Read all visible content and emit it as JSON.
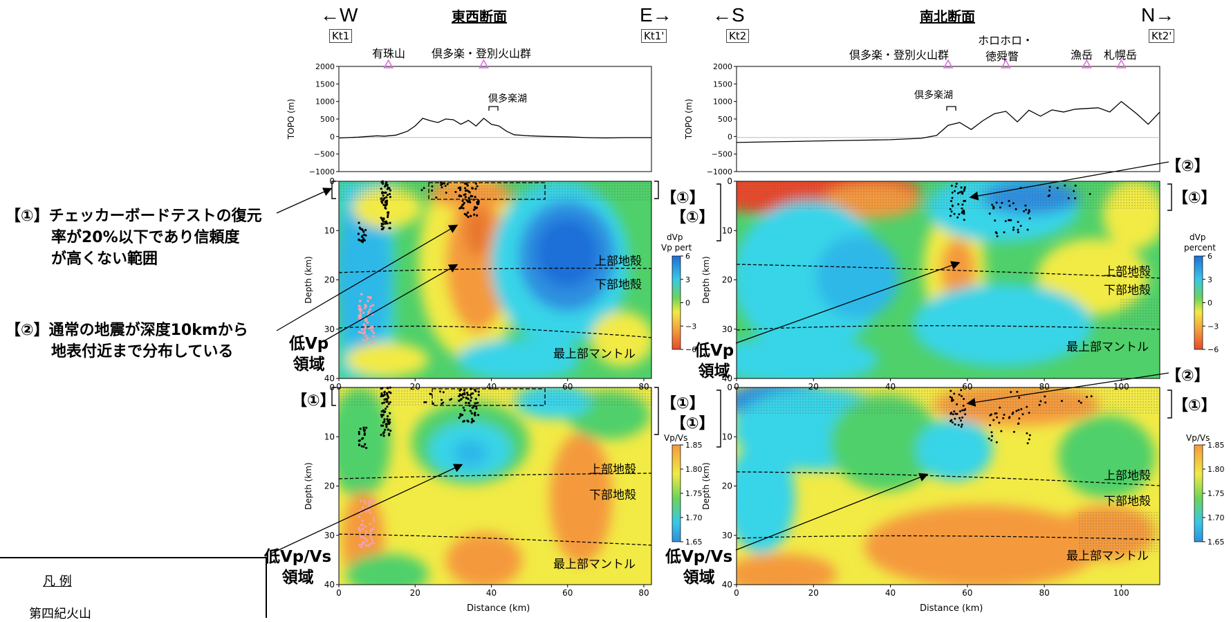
{
  "sections": {
    "ew": {
      "title": "東西断面",
      "west_label": "←W",
      "east_label": "E→",
      "start_marker": "Kt1",
      "end_marker": "Kt1'",
      "volcanoes": [
        {
          "name": "有珠山",
          "distance": 13
        },
        {
          "name": "倶多楽・登別火山群",
          "distance": 38
        }
      ],
      "lake_label": "倶多楽湖"
    },
    "ns": {
      "title": "南北断面",
      "south_label": "←S",
      "north_label": "N→",
      "start_marker": "Kt2",
      "end_marker": "Kt2'",
      "volcanoes": [
        {
          "name": "倶多楽・登別火山群",
          "distance": 55
        },
        {
          "name": "ホロホロ・",
          "name2": "徳舜瞥",
          "distance": 70
        },
        {
          "name": "漁岳",
          "distance": 91
        },
        {
          "name": "札幌岳",
          "distance": 100
        }
      ],
      "lake_label": "倶多楽湖"
    }
  },
  "annotations": {
    "note1_line1": "【①】チェッカーボードテストの復元",
    "note1_line2": "率が20%以下であり信頼度",
    "note1_line3": "が高くない範囲",
    "note2_line1": "【②】通常の地震が深度10kmから",
    "note2_line2": "地表付近まで分布している",
    "low_vp_1": "低Vp",
    "low_vp_2": "領域",
    "low_vpvs_1": "低Vp/Vs",
    "low_vpvs_2": "領域",
    "bracket1": "【①】",
    "bracket2": "【②】"
  },
  "layers": {
    "upper_crust": "上部地殻",
    "lower_crust": "下部地殻",
    "upper_mantle": "最上部マントル"
  },
  "legend": {
    "title": "凡 例",
    "item1": "第四紀火山"
  },
  "colorbars": {
    "dvp_ew": {
      "label1": "dVp",
      "label2": "Vp pert",
      "ticks": [
        "6",
        "3",
        "0",
        "−3",
        "−6"
      ]
    },
    "dvp_ns": {
      "label1": "dVp",
      "label2": "percent",
      "ticks": [
        "6",
        "3",
        "0",
        "−3",
        "−6"
      ]
    },
    "vpvs": {
      "label": "Vp/Vs",
      "ticks": [
        "1.85",
        "1.80",
        "1.75",
        "1.70",
        "1.65"
      ]
    }
  },
  "colors": {
    "red": "#e84a2a",
    "orange": "#f49a3c",
    "yellow": "#f2ea45",
    "green": "#6cd45a",
    "cyan": "#37d4e8",
    "blue": "#2f8fe0",
    "deepblue": "#1f6fd8",
    "volcano": "#e070e0"
  },
  "chart_data": [
    {
      "type": "line",
      "title": "",
      "ylabel": "TOPO (m)",
      "ylim": [
        -1000,
        2000
      ],
      "yticks": [
        "2000",
        "1500",
        "1000",
        "500",
        "0",
        "−500",
        "−1000"
      ],
      "xlim": [
        0,
        82
      ],
      "x": [
        0,
        5,
        10,
        12,
        15,
        18,
        20,
        22,
        24,
        26,
        28,
        30,
        32,
        34,
        36,
        38,
        40,
        42,
        44,
        46,
        50,
        55,
        60,
        65,
        70,
        75,
        82
      ],
      "values": [
        -40,
        -20,
        20,
        10,
        40,
        150,
        300,
        520,
        450,
        400,
        500,
        480,
        350,
        460,
        300,
        520,
        350,
        300,
        150,
        50,
        20,
        0,
        -10,
        -30,
        -40,
        -30,
        -30
      ]
    },
    {
      "type": "line",
      "title": "",
      "ylabel": "TOPO (m)",
      "ylim": [
        -1000,
        2000
      ],
      "yticks": [
        "2000",
        "1500",
        "1000",
        "500",
        "0",
        "−500",
        "−1000"
      ],
      "xlim": [
        0,
        110
      ],
      "x": [
        0,
        10,
        20,
        30,
        40,
        48,
        52,
        55,
        58,
        61,
        64,
        67,
        70,
        73,
        76,
        79,
        82,
        85,
        88,
        91,
        94,
        97,
        100,
        104,
        107,
        110
      ],
      "values": [
        -170,
        -150,
        -130,
        -110,
        -90,
        -50,
        30,
        320,
        400,
        200,
        450,
        650,
        720,
        420,
        750,
        580,
        760,
        700,
        780,
        800,
        820,
        700,
        1000,
        650,
        350,
        700
      ]
    },
    {
      "type": "heatmap",
      "title": "",
      "ylabel": "Depth (km)",
      "xlabel": "",
      "xlim": [
        0,
        82
      ],
      "ylim": [
        0,
        40
      ],
      "xticks": [
        "0",
        "20",
        "40",
        "60",
        "80"
      ],
      "yticks": [
        "0",
        "10",
        "20",
        "30",
        "40"
      ],
      "legend": "dVp (percent), range −6 to 6"
    },
    {
      "type": "heatmap",
      "title": "",
      "ylabel": "Depth (km)",
      "xlabel": "",
      "xlim": [
        0,
        110
      ],
      "ylim": [
        0,
        40
      ],
      "xticks": [
        "0",
        "20",
        "40",
        "60",
        "80",
        "100"
      ],
      "yticks": [
        "0",
        "10",
        "20",
        "30",
        "40"
      ],
      "legend": "dVp percent, range −6 to 6"
    },
    {
      "type": "heatmap",
      "title": "",
      "ylabel": "Depth (km)",
      "xlabel": "Distance (km)",
      "xlim": [
        0,
        82
      ],
      "ylim": [
        0,
        40
      ],
      "xticks": [
        "0",
        "20",
        "40",
        "60",
        "80"
      ],
      "yticks": [
        "0",
        "10",
        "20",
        "30",
        "40"
      ],
      "legend": "Vp/Vs, range 1.65 to 1.85"
    },
    {
      "type": "heatmap",
      "title": "",
      "ylabel": "Depth (km)",
      "xlabel": "Distance (km)",
      "xlim": [
        0,
        110
      ],
      "ylim": [
        0,
        40
      ],
      "xticks": [
        "0",
        "20",
        "40",
        "60",
        "80",
        "100"
      ],
      "yticks": [
        "0",
        "10",
        "20",
        "30",
        "40"
      ],
      "legend": "Vp/Vs, range 1.65 to 1.85"
    }
  ]
}
